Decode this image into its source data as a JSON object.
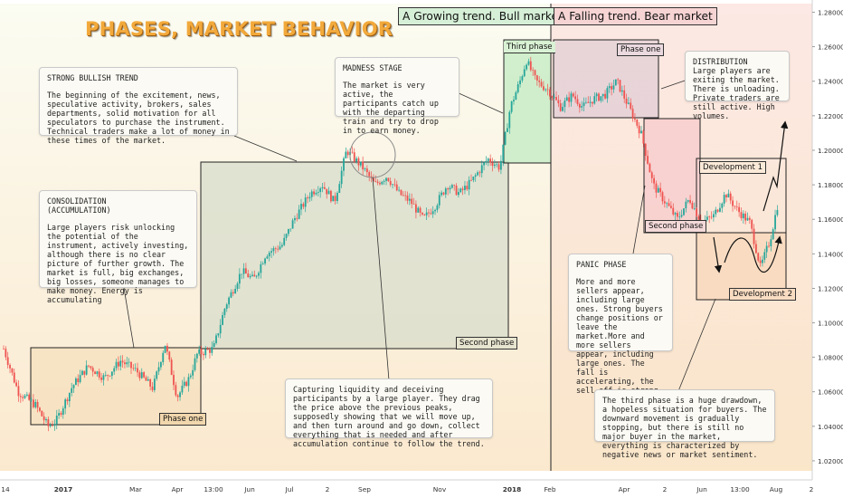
{
  "title": "PHASES, MARKET BEHAVIOR",
  "headers": {
    "bull": "A Growing trend. Bull market",
    "bear": "A Falling trend. Bear market"
  },
  "phase_labels": {
    "phase_one": "Phase one",
    "second_phase": "Second phase",
    "third_phase": "Third phase",
    "bear_phase_one": "Phase one",
    "bear_second_phase": "Second phase",
    "development_1": "Development 1",
    "development_2": "Development 2"
  },
  "notes": {
    "strong_trend": {
      "title": "STRONG BULLISH TREND",
      "body": "The beginning of the excitement, news, speculative activity, brokers, sales departments, solid motivation for all speculators to purchase the instrument. Technical traders make a lot of money in these times of the market."
    },
    "consolidation": {
      "title": "CONSOLIDATION\n(ACCUMULATION)",
      "body": "Large players risk unlocking the potential of the instrument, actively investing, although there is no clear picture of further growth. The market is full, big exchanges, big losses, someone manages to make money. Energy is accumulating"
    },
    "madness": {
      "title": "MADNESS STAGE",
      "body": "The market is very active, the participants catch up with the departing train and try to drop in to earn money."
    },
    "distribution": {
      "title": "DISTRIBUTION",
      "body": "Large players are exiting the market. There is unloading. Private traders are still active. High volumes."
    },
    "panic": {
      "title": "PANIC PHASE",
      "body": "More and more sellers appear, including large ones. Strong buyers change positions or leave the market.More and more sellers appear, including large ones. The fall is accelerating, the sell-off is strong."
    },
    "liquidity": {
      "body": "Capturing liquidity and deceiving participants by a large player. They drag the price above the previous peaks, supposedly showing that we will move up, and then turn around and go down, collect everything that is needed and after accumulation continue to follow the trend."
    },
    "third_phase_desc": {
      "body": "The third phase is a huge drawdown, a hopeless situation for buyers. The downward movement is gradually stopping, but there is still no major buyer in the market, everything is characterized by negative news or market sentiment."
    }
  },
  "colors": {
    "up": "#26a69a",
    "down": "#ef5350",
    "title": "#f2a93b",
    "bull_header_bg": "#d6efd7",
    "bear_header_bg": "#f7d4d4",
    "phase_one_fill": "#f6e0be",
    "second_phase_fill": "#d6dccb",
    "third_phase_fill": "#c9ecc7",
    "bear_phase_one_fill": "#e2cfd6",
    "bear_second_phase_fill": "#f6cdcd",
    "development_fill": "#f6d6b8"
  },
  "chart_data": {
    "type": "candlestick",
    "x_ticks": [
      "14",
      "2017",
      "Mar",
      "Apr",
      "13:00",
      "Jun",
      "Jul",
      "2",
      "Sep",
      "Nov",
      "2018",
      "Feb",
      "Apr",
      "2",
      "Jun",
      "13:00",
      "Aug",
      "2"
    ],
    "y_ticks": [
      "1.28000",
      "1.26000",
      "1.24000",
      "1.22000",
      "1.20000",
      "1.18000",
      "1.16000",
      "1.14000",
      "1.12000",
      "1.10000",
      "1.08000",
      "1.06000",
      "1.04000",
      "1.02000"
    ],
    "y_range": [
      1.01,
      1.285
    ],
    "price_path": [
      {
        "x": 0.0,
        "y": 1.085
      },
      {
        "x": 0.018,
        "y": 1.06
      },
      {
        "x": 0.04,
        "y": 1.052
      },
      {
        "x": 0.055,
        "y": 1.04
      },
      {
        "x": 0.065,
        "y": 1.043
      },
      {
        "x": 0.085,
        "y": 1.063
      },
      {
        "x": 0.105,
        "y": 1.075
      },
      {
        "x": 0.125,
        "y": 1.068
      },
      {
        "x": 0.145,
        "y": 1.078
      },
      {
        "x": 0.165,
        "y": 1.072
      },
      {
        "x": 0.185,
        "y": 1.062
      },
      {
        "x": 0.2,
        "y": 1.088
      },
      {
        "x": 0.215,
        "y": 1.057
      },
      {
        "x": 0.23,
        "y": 1.068
      },
      {
        "x": 0.24,
        "y": 1.082
      },
      {
        "x": 0.26,
        "y": 1.085
      },
      {
        "x": 0.275,
        "y": 1.11
      },
      {
        "x": 0.295,
        "y": 1.13
      },
      {
        "x": 0.31,
        "y": 1.125
      },
      {
        "x": 0.325,
        "y": 1.14
      },
      {
        "x": 0.345,
        "y": 1.145
      },
      {
        "x": 0.36,
        "y": 1.16
      },
      {
        "x": 0.38,
        "y": 1.175
      },
      {
        "x": 0.395,
        "y": 1.18
      },
      {
        "x": 0.41,
        "y": 1.17
      },
      {
        "x": 0.425,
        "y": 1.2
      },
      {
        "x": 0.445,
        "y": 1.19
      },
      {
        "x": 0.46,
        "y": 1.18
      },
      {
        "x": 0.475,
        "y": 1.185
      },
      {
        "x": 0.49,
        "y": 1.175
      },
      {
        "x": 0.505,
        "y": 1.17
      },
      {
        "x": 0.52,
        "y": 1.16
      },
      {
        "x": 0.535,
        "y": 1.168
      },
      {
        "x": 0.55,
        "y": 1.18
      },
      {
        "x": 0.565,
        "y": 1.175
      },
      {
        "x": 0.58,
        "y": 1.182
      },
      {
        "x": 0.6,
        "y": 1.195
      },
      {
        "x": 0.615,
        "y": 1.19
      },
      {
        "x": 0.628,
        "y": 1.225
      },
      {
        "x": 0.64,
        "y": 1.24
      },
      {
        "x": 0.648,
        "y": 1.252
      },
      {
        "x": 0.66,
        "y": 1.24
      },
      {
        "x": 0.675,
        "y": 1.235
      },
      {
        "x": 0.69,
        "y": 1.225
      },
      {
        "x": 0.705,
        "y": 1.232
      },
      {
        "x": 0.718,
        "y": 1.225
      },
      {
        "x": 0.732,
        "y": 1.23
      },
      {
        "x": 0.745,
        "y": 1.232
      },
      {
        "x": 0.76,
        "y": 1.24
      },
      {
        "x": 0.775,
        "y": 1.225
      },
      {
        "x": 0.79,
        "y": 1.21
      },
      {
        "x": 0.805,
        "y": 1.18
      },
      {
        "x": 0.82,
        "y": 1.17
      },
      {
        "x": 0.835,
        "y": 1.16
      },
      {
        "x": 0.85,
        "y": 1.172
      },
      {
        "x": 0.865,
        "y": 1.158
      },
      {
        "x": 0.88,
        "y": 1.162
      },
      {
        "x": 0.895,
        "y": 1.175
      },
      {
        "x": 0.91,
        "y": 1.165
      },
      {
        "x": 0.925,
        "y": 1.158
      },
      {
        "x": 0.938,
        "y": 1.132
      },
      {
        "x": 0.95,
        "y": 1.148
      },
      {
        "x": 0.96,
        "y": 1.17
      }
    ]
  }
}
